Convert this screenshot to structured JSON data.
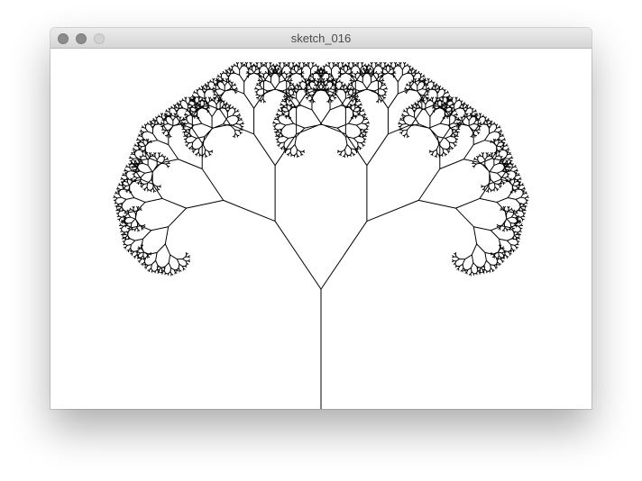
{
  "window": {
    "title": "sketch_016"
  },
  "sketch": {
    "description_kind": "fractal-tree",
    "background_color": "#ffffff",
    "stroke_color": "#000000"
  }
}
